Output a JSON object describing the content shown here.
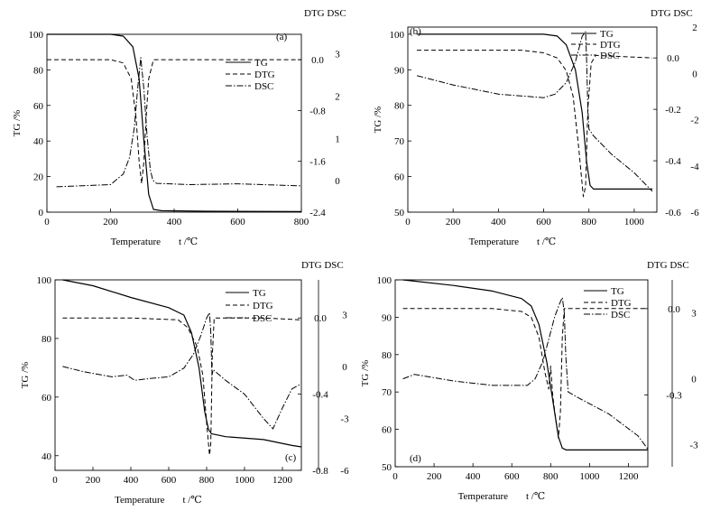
{
  "chart_data": [
    {
      "type": "line",
      "panel": "(a)",
      "right_header": "DTG DSC",
      "xlabel": "Temperature",
      "xunit": "t /℃",
      "ylabel": "TG /%",
      "xlim": [
        0,
        800
      ],
      "x_ticks": [
        0,
        200,
        400,
        600,
        800
      ],
      "y_left": {
        "lim": [
          0,
          100
        ],
        "ticks": [
          0,
          20,
          40,
          60,
          80,
          100
        ]
      },
      "y_dtg": {
        "lim": [
          -2.4,
          0.4
        ],
        "ticks": [
          0.0,
          -0.8,
          -1.6,
          -2.4
        ],
        "labels": [
          "0.0",
          "-0.8",
          "-1.6",
          "-2.4"
        ]
      },
      "y_dsc": {
        "lim": [
          -0.7,
          3.5
        ],
        "ticks": [
          0,
          1,
          2,
          3
        ],
        "labels": [
          "0",
          "1",
          "2",
          "3"
        ]
      },
      "legend": [
        "TG",
        "DTG",
        "DSC"
      ],
      "series": [
        {
          "name": "TG",
          "axis": "left",
          "x": [
            0,
            200,
            240,
            270,
            290,
            305,
            320,
            335,
            360,
            500,
            800
          ],
          "y": [
            100,
            100,
            99,
            93,
            75,
            40,
            10,
            1.5,
            0.8,
            0.5,
            0.3
          ]
        },
        {
          "name": "DTG",
          "axis": "dtg",
          "x": [
            0,
            200,
            240,
            265,
            280,
            290,
            298,
            305,
            312,
            320,
            335,
            500,
            800
          ],
          "y": [
            0.0,
            0.0,
            -0.05,
            -0.3,
            -0.9,
            -1.6,
            -1.95,
            -1.6,
            -0.9,
            -0.3,
            0.0,
            0.0,
            0.0
          ]
        },
        {
          "name": "DSC",
          "axis": "dsc",
          "x": [
            30,
            200,
            240,
            260,
            275,
            285,
            295,
            305,
            315,
            325,
            333,
            345,
            450,
            600,
            800
          ],
          "y": [
            -0.1,
            -0.05,
            0.2,
            0.6,
            1.3,
            2.2,
            2.95,
            2.2,
            1.1,
            0.3,
            0.05,
            -0.02,
            -0.05,
            -0.03,
            -0.08
          ]
        }
      ]
    },
    {
      "type": "line",
      "panel": "(b)",
      "right_header": "DTG DSC",
      "xlabel": "Temperature",
      "xunit": "t /℃",
      "ylabel": "TG /%",
      "xlim": [
        0,
        1100
      ],
      "x_ticks": [
        0,
        200,
        400,
        600,
        800,
        1000
      ],
      "y_left": {
        "lim": [
          50,
          102
        ],
        "ticks": [
          50,
          60,
          70,
          80,
          90,
          100
        ]
      },
      "y_dtg": {
        "lim": [
          -0.6,
          0.12
        ],
        "ticks": [
          0.0,
          -0.2,
          -0.4,
          -0.6
        ],
        "labels": [
          "0.0",
          "-0.2",
          "-0.4",
          "-0.6"
        ]
      },
      "y_dsc": {
        "lim": [
          -6,
          2
        ],
        "ticks": [
          2,
          0,
          -2,
          -4,
          -6
        ],
        "labels": [
          "2",
          "0",
          "-2",
          "-4",
          "-6"
        ]
      },
      "legend": [
        "TG",
        "DTG",
        "DSC"
      ],
      "series": [
        {
          "name": "TG",
          "axis": "left",
          "x": [
            40,
            400,
            600,
            660,
            700,
            740,
            770,
            790,
            805,
            820,
            900,
            1080
          ],
          "y": [
            100,
            100,
            100,
            99.5,
            97,
            90,
            78,
            64,
            57.5,
            56.5,
            56.5,
            56.5
          ]
        },
        {
          "name": "DTG",
          "axis": "dtg",
          "x": [
            40,
            500,
            600,
            660,
            700,
            730,
            755,
            775,
            785,
            795,
            810,
            830,
            1080
          ],
          "y": [
            0.03,
            0.03,
            0.02,
            0.0,
            -0.05,
            -0.15,
            -0.35,
            -0.54,
            -0.5,
            -0.2,
            -0.02,
            0.01,
            0.0
          ]
        },
        {
          "name": "DSC",
          "axis": "dsc",
          "x": [
            40,
            200,
            400,
            600,
            650,
            700,
            740,
            770,
            785,
            790,
            795,
            800,
            820,
            900,
            1000,
            1080
          ],
          "y": [
            -0.1,
            -0.5,
            -0.9,
            -1.05,
            -0.9,
            -0.4,
            0.5,
            1.6,
            1.8,
            0.5,
            -1.5,
            -2.4,
            -2.7,
            -3.5,
            -4.3,
            -5.1
          ]
        }
      ]
    },
    {
      "type": "line",
      "panel": "(c)",
      "right_header": "DTG DSC",
      "xlabel": "Temperature",
      "xunit": "t /℃",
      "ylabel": "TG /%",
      "xlim": [
        0,
        1300
      ],
      "x_ticks": [
        0,
        200,
        400,
        600,
        800,
        1000,
        1200
      ],
      "y_left": {
        "lim": [
          35,
          100
        ],
        "ticks": [
          40,
          60,
          80,
          100
        ]
      },
      "y_dtg": {
        "lim": [
          -0.8,
          0.2
        ],
        "ticks": [
          0.0,
          -0.4,
          -0.8
        ],
        "labels": [
          "0.0",
          "-0.4",
          "-0.8"
        ]
      },
      "y_dsc": {
        "lim": [
          -6,
          5
        ],
        "ticks": [
          3,
          0,
          -3,
          -6
        ],
        "labels": [
          "3",
          "0",
          "-3",
          "-6"
        ]
      },
      "legend": [
        "TG",
        "DTG",
        "DSC"
      ],
      "series": [
        {
          "name": "TG",
          "axis": "left",
          "x": [
            40,
            200,
            400,
            600,
            680,
            720,
            760,
            790,
            810,
            825,
            900,
            1100,
            1250,
            1300
          ],
          "y": [
            100,
            98,
            94,
            90.5,
            88,
            82,
            70,
            55,
            49,
            47.5,
            46.5,
            45.5,
            43.5,
            43
          ]
        },
        {
          "name": "DTG",
          "axis": "dtg",
          "x": [
            40,
            400,
            650,
            700,
            750,
            780,
            800,
            815,
            822,
            830,
            840,
            900,
            1100,
            1300
          ],
          "y": [
            0.0,
            0.0,
            -0.01,
            -0.05,
            -0.15,
            -0.3,
            -0.55,
            -0.72,
            -0.66,
            -0.2,
            0.0,
            0.0,
            0.0,
            -0.01
          ]
        },
        {
          "name": "DSC",
          "axis": "dsc",
          "x": [
            40,
            150,
            300,
            380,
            420,
            500,
            600,
            680,
            730,
            770,
            800,
            815,
            822,
            828,
            835,
            900,
            1000,
            1100,
            1150,
            1200,
            1250,
            1300
          ],
          "y": [
            0.0,
            -0.3,
            -0.6,
            -0.5,
            -0.8,
            -0.7,
            -0.6,
            -0.1,
            0.7,
            1.8,
            2.8,
            3.1,
            2.0,
            -0.5,
            -0.2,
            -0.8,
            -1.6,
            -3.0,
            -3.6,
            -2.4,
            -1.3,
            -1.0
          ]
        }
      ]
    },
    {
      "type": "line",
      "panel": "(d)",
      "right_header": "DTG DSC",
      "xlabel": "Temperature",
      "xunit": "t /℃",
      "ylabel": "TG /%",
      "xlim": [
        0,
        1300
      ],
      "x_ticks": [
        0,
        200,
        400,
        600,
        800,
        1000,
        1200
      ],
      "y_left": {
        "lim": [
          50,
          100
        ],
        "ticks": [
          50,
          60,
          70,
          80,
          90,
          100
        ]
      },
      "y_dtg": {
        "lim": [
          -0.55,
          0.1
        ],
        "ticks": [
          0.0,
          -0.3
        ],
        "labels": [
          "0.0",
          "-0.3"
        ]
      },
      "y_dsc": {
        "lim": [
          -4,
          4.5
        ],
        "ticks": [
          3,
          0,
          -3
        ],
        "labels": [
          "3",
          "0",
          "-3"
        ]
      },
      "legend": [
        "TG",
        "DTG",
        "DSC"
      ],
      "series": [
        {
          "name": "TG",
          "axis": "left",
          "x": [
            40,
            300,
            500,
            650,
            700,
            740,
            780,
            810,
            840,
            860,
            880,
            1000,
            1300
          ],
          "y": [
            100,
            98.5,
            97,
            95,
            93,
            88,
            78,
            68,
            58,
            55,
            54.5,
            54.5,
            54.5
          ]
        },
        {
          "name": "DTG",
          "axis": "dtg",
          "x": [
            40,
            500,
            650,
            700,
            740,
            770,
            790,
            800,
            810,
            825,
            840,
            850,
            860,
            870,
            890,
            1000,
            1300
          ],
          "y": [
            0.0,
            0.0,
            -0.01,
            -0.03,
            -0.1,
            -0.22,
            -0.28,
            -0.2,
            -0.3,
            -0.38,
            -0.45,
            -0.36,
            -0.1,
            0.0,
            0.0,
            0.0,
            0.0
          ]
        },
        {
          "name": "DSC",
          "axis": "dsc",
          "x": [
            40,
            100,
            300,
            500,
            680,
            720,
            760,
            790,
            820,
            845,
            860,
            870,
            878,
            890,
            950,
            1100,
            1250,
            1300
          ],
          "y": [
            0.0,
            0.2,
            -0.1,
            -0.3,
            -0.3,
            0.0,
            0.8,
            1.8,
            2.8,
            3.4,
            3.7,
            3.0,
            1.0,
            -0.6,
            -0.9,
            -1.6,
            -2.6,
            -3.2
          ]
        }
      ]
    }
  ]
}
